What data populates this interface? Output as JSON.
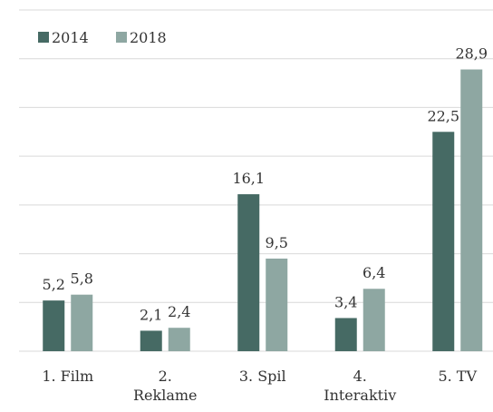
{
  "chart_data": {
    "type": "bar",
    "categories": [
      "1. Film",
      "2.\nReklame",
      "3. Spil",
      "4.\nInteraktiv",
      "5. TV"
    ],
    "series": [
      {
        "name": "2014",
        "color": "#466a64",
        "values": [
          5.2,
          2.1,
          16.1,
          3.4,
          22.5
        ],
        "value_labels": [
          "5,2",
          "2,1",
          "16,1",
          "3,4",
          "22,5"
        ]
      },
      {
        "name": "2018",
        "color": "#8ea7a2",
        "values": [
          5.8,
          2.4,
          9.5,
          6.4,
          28.9
        ],
        "value_labels": [
          "5,8",
          "2,4",
          "9,5",
          "6,4",
          "28,9"
        ]
      }
    ],
    "ylim": [
      0,
      35
    ],
    "yticks": [
      0,
      5,
      10,
      15,
      20,
      25,
      30,
      35
    ],
    "grid": true,
    "legend": "top-left"
  }
}
